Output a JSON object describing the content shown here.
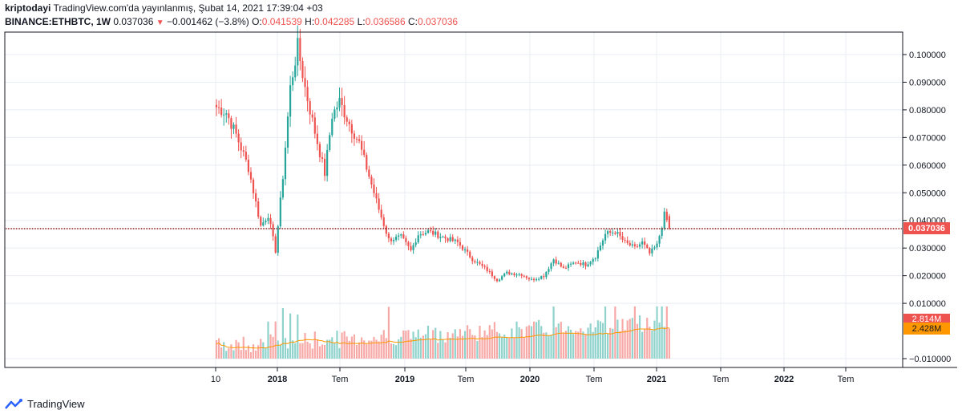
{
  "header": {
    "author": "kriptodayi",
    "published": "TradingView.com'da yayınlanmış, Şubat 14, 2021 17:39:04 +03",
    "symbol": "BINANCE:ETHBTC, 1W",
    "last": "0.037036",
    "change": "−0.001462 (−3.8%)",
    "o_label": "O:",
    "o_val": "0.041539",
    "h_label": "H:",
    "h_val": "0.042285",
    "l_label": "L:",
    "l_val": "0.036586",
    "c_label": "C:",
    "c_val": "0.037036"
  },
  "footer": {
    "brand": "TradingView"
  },
  "colors": {
    "up": "#26a69a",
    "down": "#ef5350",
    "up_vol": "#8fd3cc",
    "down_vol": "#f7a9a7",
    "ma": "#ff9800",
    "grid": "#e8edf3"
  },
  "chart_data": {
    "type": "candlestick",
    "title": "BINANCE:ETHBTC, 1W",
    "y_ticks": [
      "0.100000",
      "0.090000",
      "0.080000",
      "0.070000",
      "0.060000",
      "0.050000",
      "0.040000",
      "0.030000",
      "0.020000",
      "0.010000",
      "−0.010000"
    ],
    "x_ticks": [
      "10",
      "2018",
      "Tem",
      "2019",
      "Tem",
      "2020",
      "Tem",
      "2021",
      "Tem",
      "2022",
      "Tem"
    ],
    "price_line": 0.037036,
    "price_label": "0.037036",
    "vol_label": "2.814M",
    "vol_ma_label": "2.428M",
    "ylim": [
      -0.015,
      0.108
    ],
    "anchors": [
      {
        "t": 0,
        "p": 0.081
      },
      {
        "t": 4,
        "p": 0.079
      },
      {
        "t": 8,
        "p": 0.071
      },
      {
        "t": 13,
        "p": 0.059
      },
      {
        "t": 18,
        "p": 0.038
      },
      {
        "t": 21,
        "p": 0.042
      },
      {
        "t": 24,
        "p": 0.029
      },
      {
        "t": 27,
        "p": 0.056
      },
      {
        "t": 30,
        "p": 0.088
      },
      {
        "t": 33,
        "p": 0.103
      },
      {
        "t": 36,
        "p": 0.088
      },
      {
        "t": 40,
        "p": 0.072
      },
      {
        "t": 44,
        "p": 0.057
      },
      {
        "t": 47,
        "p": 0.078
      },
      {
        "t": 50,
        "p": 0.083
      },
      {
        "t": 54,
        "p": 0.075
      },
      {
        "t": 58,
        "p": 0.068
      },
      {
        "t": 62,
        "p": 0.056
      },
      {
        "t": 66,
        "p": 0.044
      },
      {
        "t": 70,
        "p": 0.033
      },
      {
        "t": 75,
        "p": 0.034
      },
      {
        "t": 79,
        "p": 0.029
      },
      {
        "t": 82,
        "p": 0.035
      },
      {
        "t": 86,
        "p": 0.036
      },
      {
        "t": 92,
        "p": 0.034
      },
      {
        "t": 98,
        "p": 0.032
      },
      {
        "t": 104,
        "p": 0.026
      },
      {
        "t": 110,
        "p": 0.022
      },
      {
        "t": 114,
        "p": 0.0185
      },
      {
        "t": 118,
        "p": 0.021
      },
      {
        "t": 124,
        "p": 0.0205
      },
      {
        "t": 128,
        "p": 0.0185
      },
      {
        "t": 133,
        "p": 0.02
      },
      {
        "t": 137,
        "p": 0.026
      },
      {
        "t": 141,
        "p": 0.0225
      },
      {
        "t": 146,
        "p": 0.025
      },
      {
        "t": 150,
        "p": 0.024
      },
      {
        "t": 154,
        "p": 0.027
      },
      {
        "t": 158,
        "p": 0.035
      },
      {
        "t": 162,
        "p": 0.036
      },
      {
        "t": 166,
        "p": 0.032
      },
      {
        "t": 170,
        "p": 0.03
      },
      {
        "t": 173,
        "p": 0.032
      },
      {
        "t": 176,
        "p": 0.028
      },
      {
        "t": 179,
        "p": 0.031
      },
      {
        "t": 181,
        "p": 0.038
      },
      {
        "t": 182,
        "p": 0.042
      },
      {
        "t": 183,
        "p": 0.04
      },
      {
        "t": 184,
        "p": 0.037
      }
    ]
  }
}
